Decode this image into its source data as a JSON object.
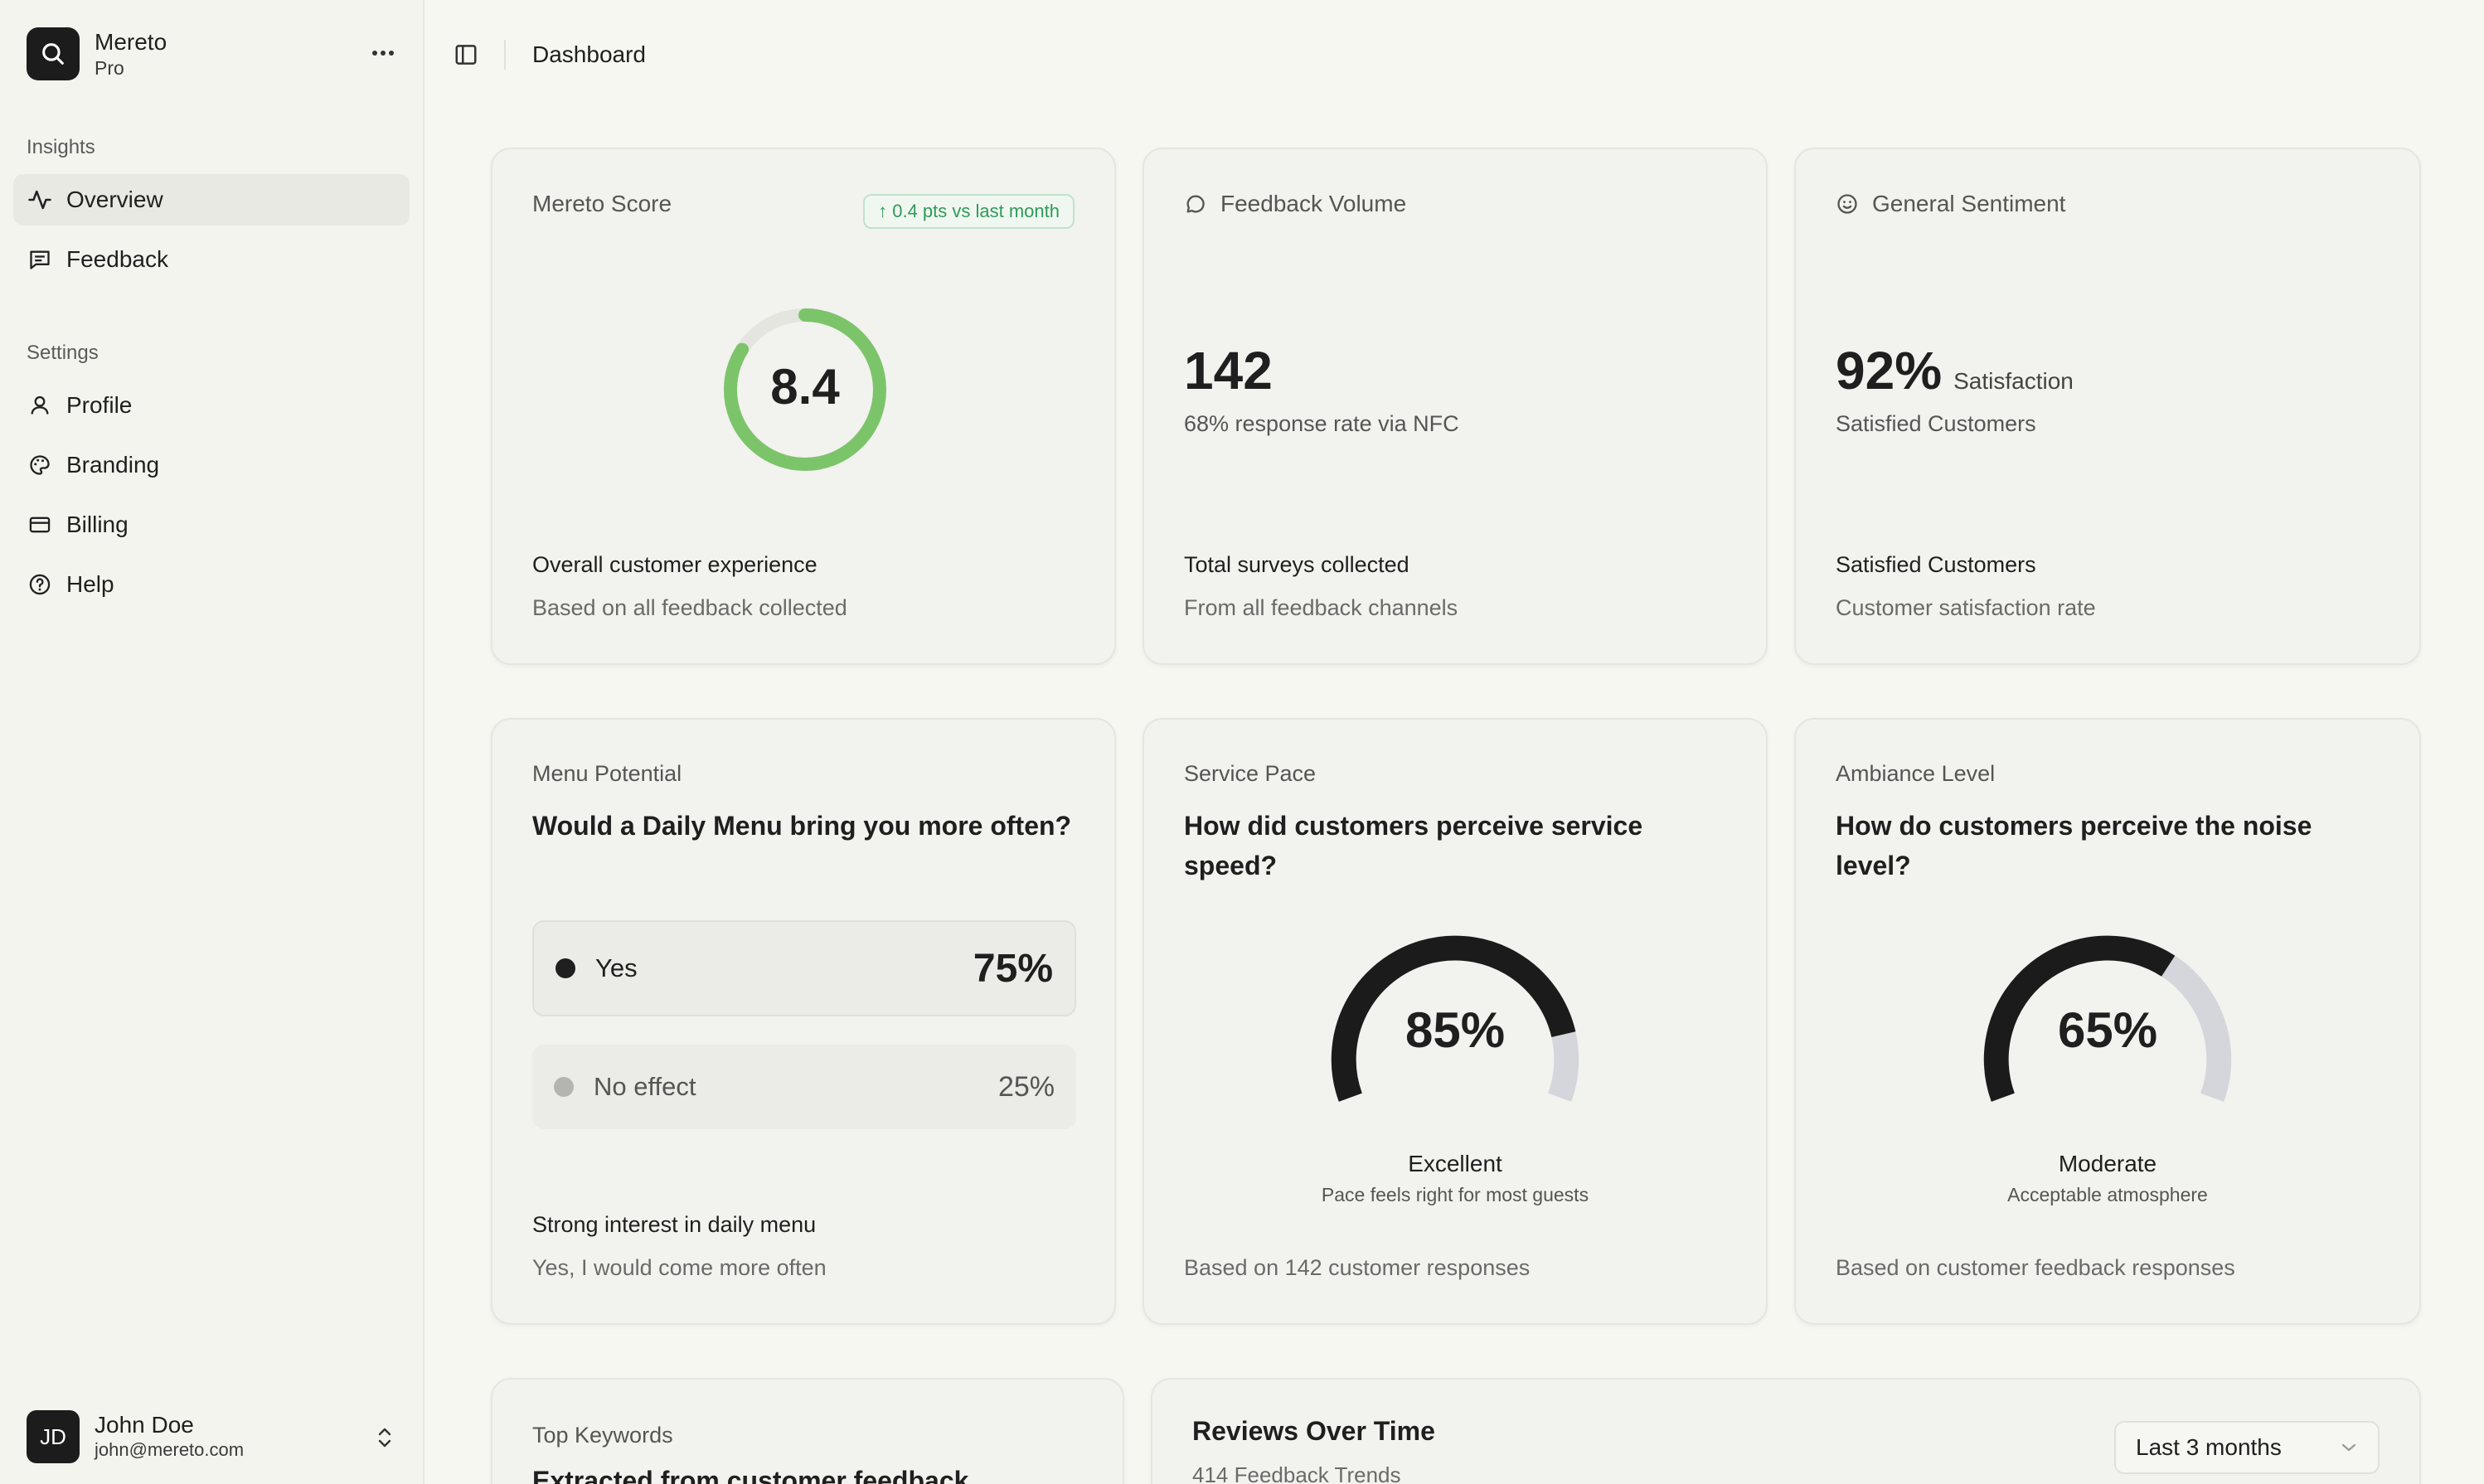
{
  "app": {
    "name": "Mereto",
    "plan": "Pro"
  },
  "sidebar": {
    "groups": [
      {
        "label": "Insights",
        "items": [
          {
            "label": "Overview",
            "icon": "activity-icon",
            "active": true
          },
          {
            "label": "Feedback",
            "icon": "message-icon"
          }
        ]
      },
      {
        "label": "Settings",
        "items": [
          {
            "label": "Profile",
            "icon": "user-icon"
          },
          {
            "label": "Branding",
            "icon": "palette-icon"
          },
          {
            "label": "Billing",
            "icon": "credit-card-icon"
          },
          {
            "label": "Help",
            "icon": "help-circle-icon"
          }
        ]
      }
    ],
    "user": {
      "initials": "JD",
      "name": "John Doe",
      "email": "john@mereto.com"
    }
  },
  "header": {
    "breadcrumb": "Dashboard"
  },
  "cards": {
    "score": {
      "title": "Mereto Score",
      "badge": "↑ 0.4 pts vs last month",
      "value": "8.4",
      "value_fraction": 0.84,
      "footer_title": "Overall customer experience",
      "footer_sub": "Based on all feedback collected"
    },
    "volume": {
      "title": "Feedback Volume",
      "value": "142",
      "sub": "68% response rate via NFC",
      "footer_title": "Total surveys collected",
      "footer_sub": "From all feedback channels"
    },
    "sentiment": {
      "title": "General Sentiment",
      "value": "92%",
      "unit": "Satisfaction",
      "sub": "Satisfied Customers",
      "footer_title": "Satisfied Customers",
      "footer_sub": "Customer satisfaction rate"
    },
    "menu": {
      "category": "Menu Potential",
      "question": "Would a Daily Menu bring you more often?",
      "options": [
        {
          "label": "Yes",
          "value": "75%"
        },
        {
          "label": "No effect",
          "value": "25%"
        }
      ],
      "footer_title": "Strong interest in daily menu",
      "footer_sub": "Yes, I would come more often"
    },
    "service": {
      "category": "Service Pace",
      "question": "How did customers perceive service speed?",
      "value": "85%",
      "fraction": 0.85,
      "label": "Excellent",
      "sub": "Pace feels right for most guests",
      "footer": "Based on 142 customer responses"
    },
    "ambiance": {
      "category": "Ambiance Level",
      "question": "How do customers perceive the noise level?",
      "value": "65%",
      "fraction": 0.65,
      "label": "Moderate",
      "sub": "Acceptable atmosphere",
      "footer": "Based on customer feedback responses"
    },
    "keywords": {
      "title": "Top Keywords",
      "subtitle": "Extracted from customer feedback"
    },
    "reviews": {
      "title": "Reviews Over Time",
      "subtitle": "414 Feedback Trends",
      "range": "Last 3 months"
    }
  },
  "colors": {
    "accent_green": "#7cc46a",
    "gauge_dark": "#1b1b1b",
    "gauge_track": "#d4d6dc",
    "badge_green": "#2f9a5a"
  }
}
